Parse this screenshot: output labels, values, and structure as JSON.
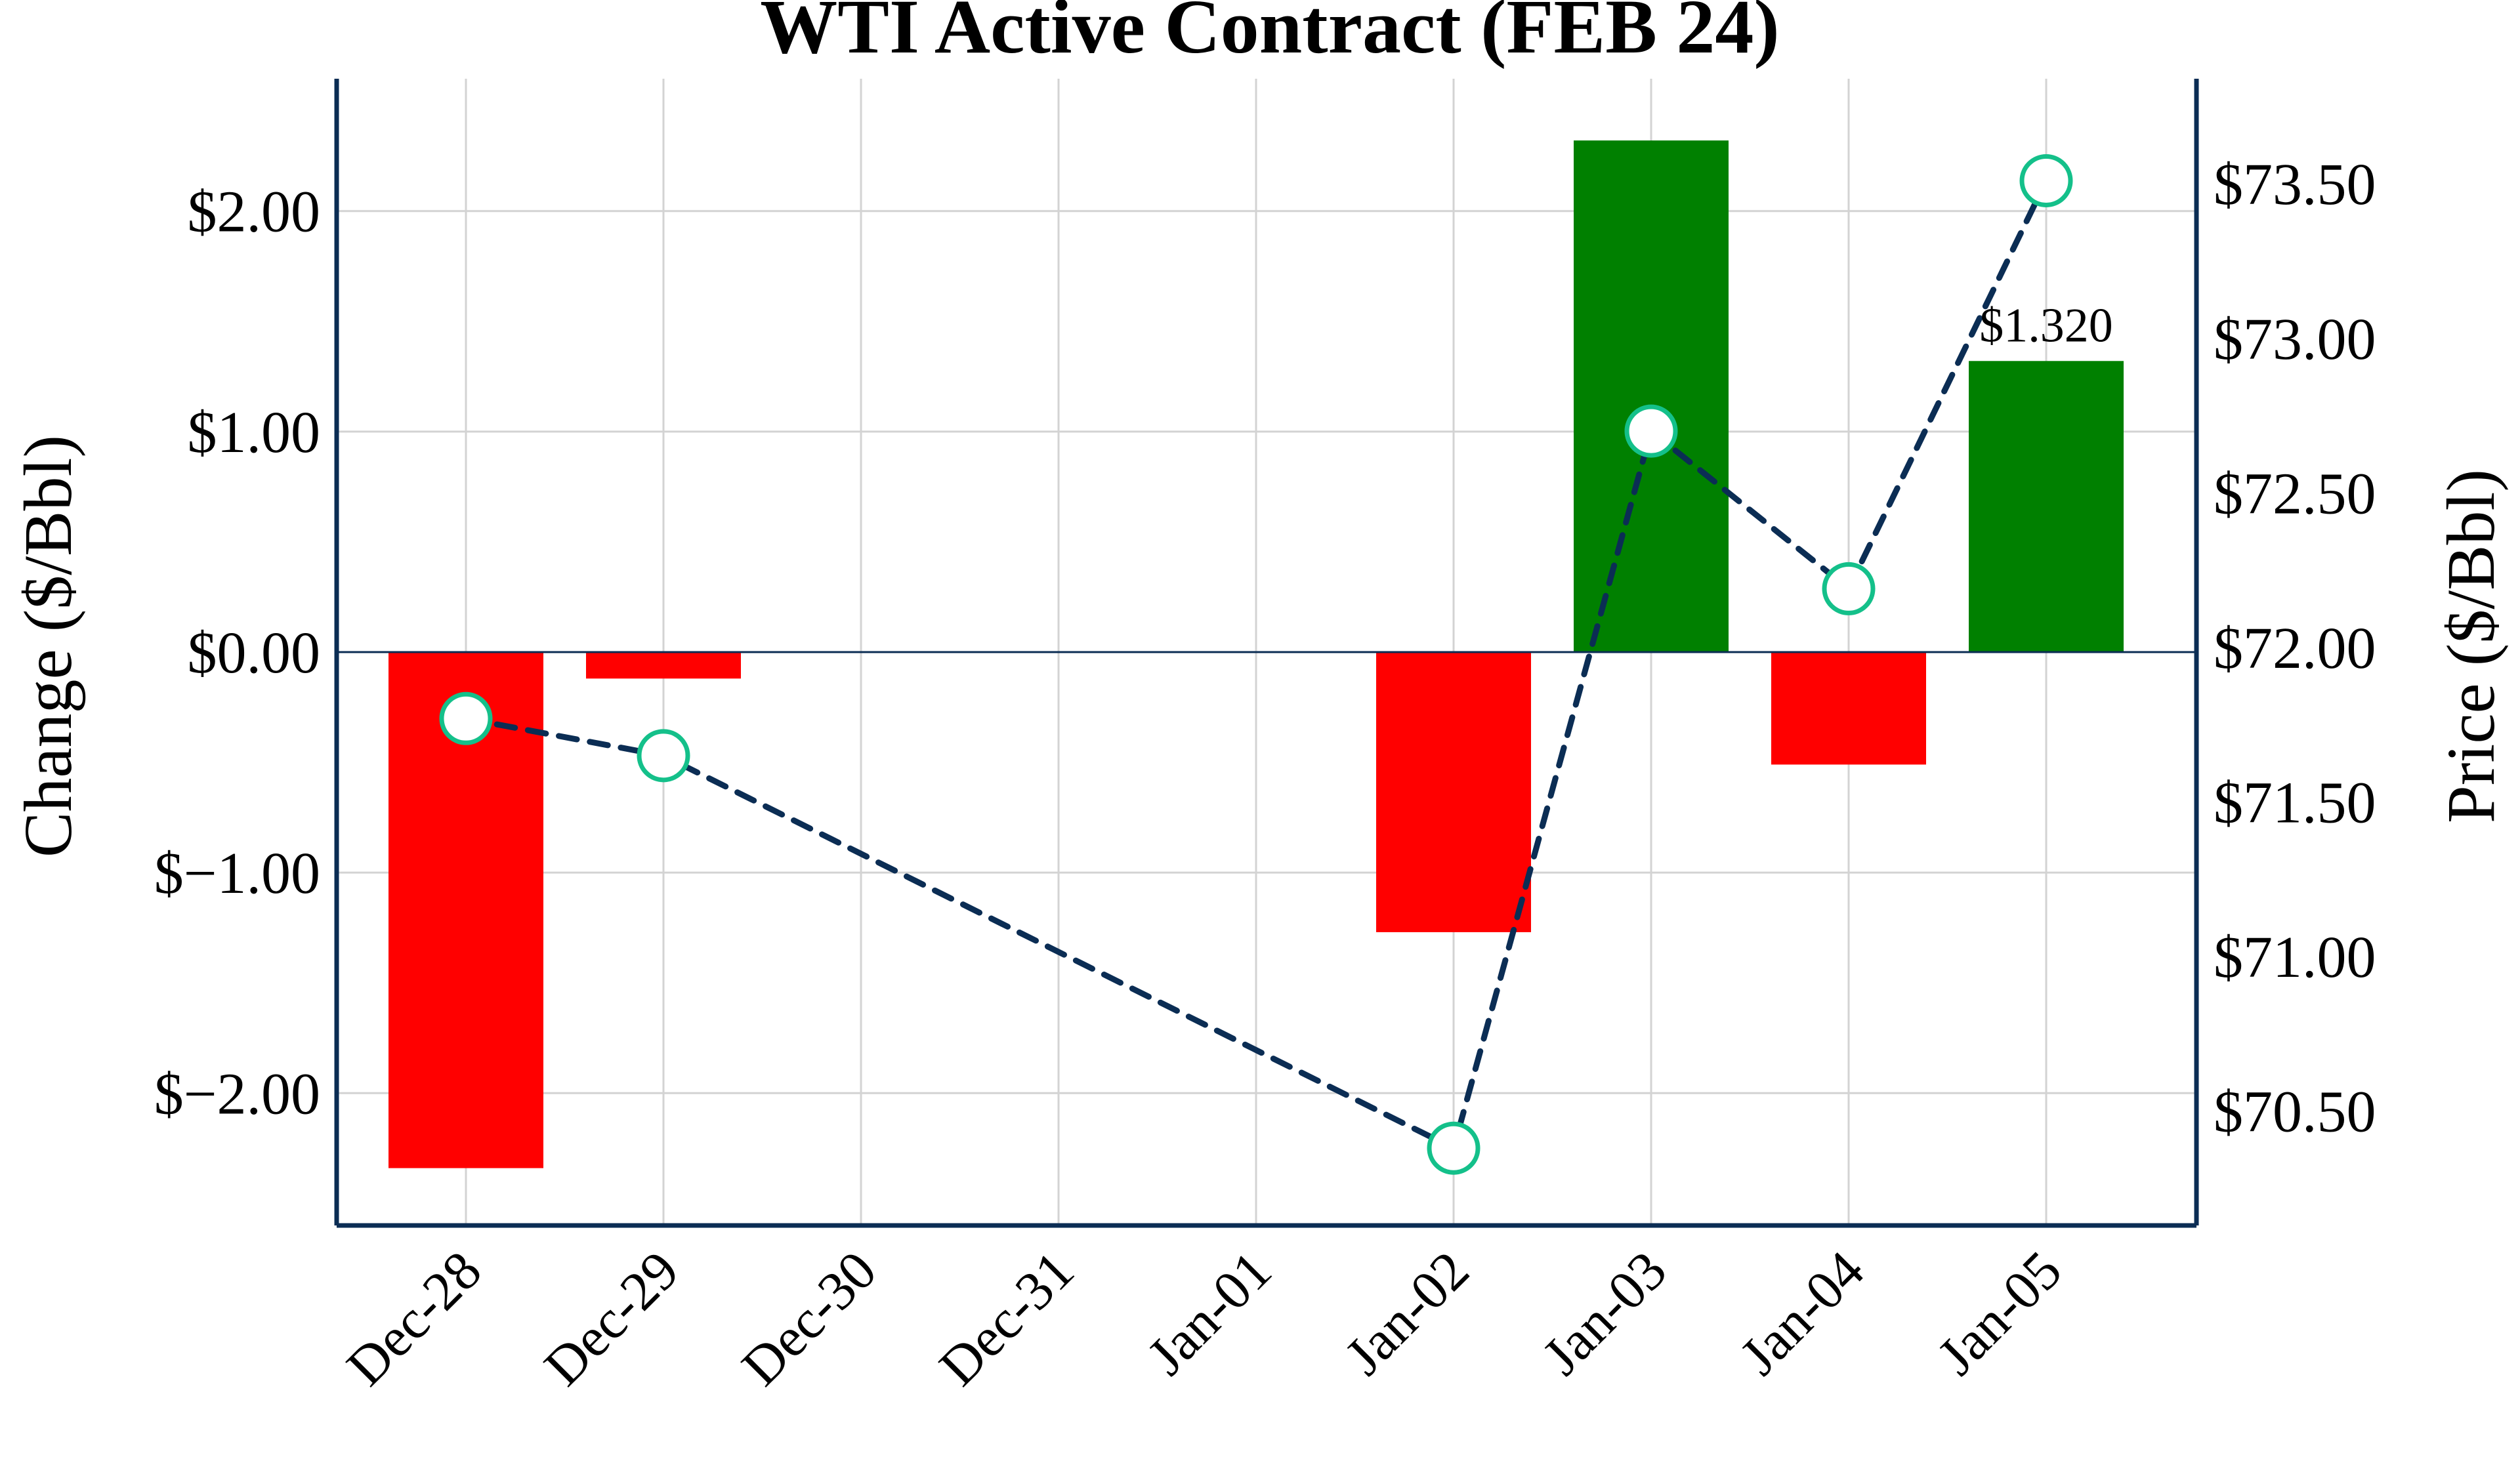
{
  "colors": {
    "positive_bar": "#008000",
    "negative_bar": "#ff0000",
    "price_line": "#0b2d54",
    "marker_edge": "#14c08a",
    "marker_fill": "#ffffff",
    "axis_spine": "#0b2d54",
    "grid": "#d3d3d3"
  },
  "chart_data": {
    "type": "bar",
    "title": "WTI Active Contract (FEB 24)",
    "xlabel": "",
    "ylabel": "Change ($/Bbl)",
    "y2label": "Price ($/Bbl)",
    "categories": [
      "Dec-28",
      "Dec-29",
      "Dec-30",
      "Dec-31",
      "Jan-01",
      "Jan-02",
      "Jan-03",
      "Jan-04",
      "Jan-05"
    ],
    "ylim": [
      -2.6,
      2.6
    ],
    "y2lim": [
      70.13,
      73.84
    ],
    "yticks": [
      -2,
      -1,
      0,
      1,
      2
    ],
    "ytick_labels": [
      "$−2.00",
      "$−1.00",
      "$0.00",
      "$1.00",
      "$2.00"
    ],
    "y2ticks": [
      70.5,
      71.0,
      71.5,
      72.0,
      72.5,
      73.0,
      73.5
    ],
    "y2tick_labels": [
      "$70.50",
      "$71.00",
      "$71.50",
      "$72.00",
      "$72.50",
      "$73.00",
      "$73.50"
    ],
    "grid": true,
    "series": [
      {
        "type": "bar",
        "axis": "left",
        "values": [
          -2.34,
          -0.12,
          null,
          null,
          null,
          -1.27,
          2.32,
          -0.51,
          1.32
        ]
      },
      {
        "type": "line",
        "axis": "right",
        "line_style": "dashed",
        "marker": "circle",
        "values": [
          71.77,
          71.65,
          null,
          null,
          null,
          70.38,
          72.7,
          72.19,
          73.51
        ]
      }
    ],
    "annotations": [
      {
        "category": "Jan-05",
        "text": "$1.320"
      }
    ]
  }
}
